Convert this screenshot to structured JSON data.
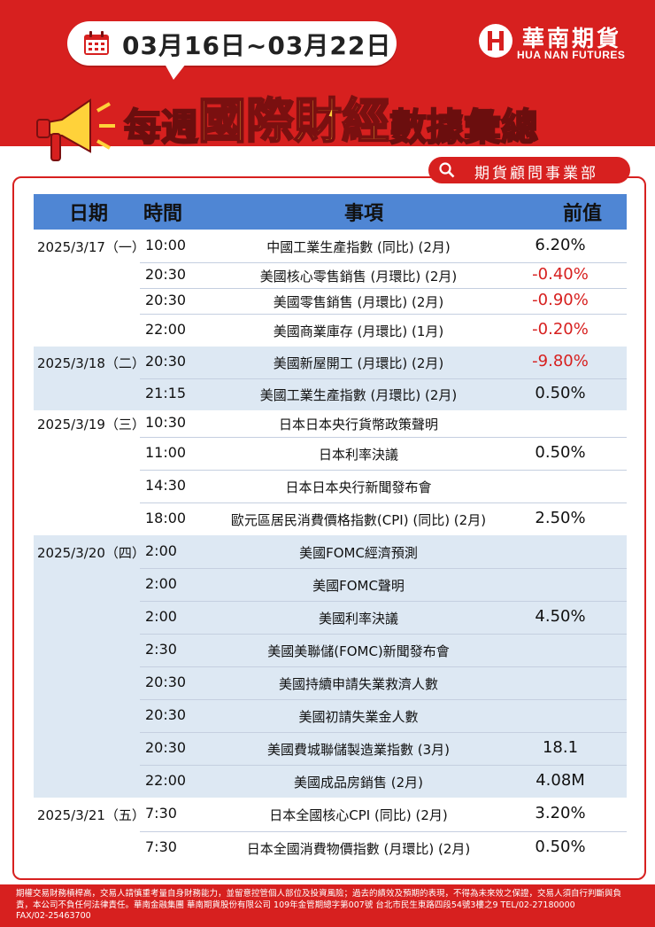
{
  "header": {
    "date_range": "03月16日~03月22日",
    "brand_cn": "華南期貨",
    "brand_en": "HUA NAN FUTURES",
    "title_part1": "每週",
    "title_part2": "國際財經",
    "title_part3": "數據彙總",
    "department": "期貨顧問事業部"
  },
  "table": {
    "columns": {
      "date": "日期",
      "time": "時間",
      "item": "事項",
      "previous": "前值"
    },
    "groups": [
      {
        "date": "2025/3/17（一）",
        "rows": [
          {
            "time": "10:00",
            "item": "中國工業生產指數 (同比) (2月)",
            "previous": "6.20%"
          },
          {
            "time": "20:30",
            "item": "美國核心零售銷售 (月環比) (2月)",
            "previous": "-0.40%"
          },
          {
            "time": "20:30",
            "item": "美國零售銷售 (月環比) (2月)",
            "previous": "-0.90%"
          },
          {
            "time": "22:00",
            "item": "美國商業庫存 (月環比) (1月)",
            "previous": "-0.20%"
          }
        ]
      },
      {
        "date": "2025/3/18（二）",
        "rows": [
          {
            "time": "20:30",
            "item": "美國新屋開工 (月環比) (2月)",
            "previous": "-9.80%"
          },
          {
            "time": "21:15",
            "item": "美國工業生產指數 (月環比) (2月)",
            "previous": "0.50%"
          }
        ]
      },
      {
        "date": "2025/3/19（三）",
        "rows": [
          {
            "time": "10:30",
            "item": "日本日本央行貨幣政策聲明",
            "previous": ""
          },
          {
            "time": "11:00",
            "item": "日本利率決議",
            "previous": "0.50%"
          },
          {
            "time": "14:30",
            "item": "日本日本央行新聞發布會",
            "previous": ""
          },
          {
            "time": "18:00",
            "item": "歐元區居民消費價格指數(CPI) (同比) (2月)",
            "previous": "2.50%"
          }
        ]
      },
      {
        "date": "2025/3/20（四）",
        "rows": [
          {
            "time": "2:00",
            "item": "美國FOMC經濟預測",
            "previous": ""
          },
          {
            "time": "2:00",
            "item": "美國FOMC聲明",
            "previous": ""
          },
          {
            "time": "2:00",
            "item": "美國利率決議",
            "previous": "4.50%"
          },
          {
            "time": "2:30",
            "item": "美國美聯儲(FOMC)新聞發布會",
            "previous": ""
          },
          {
            "time": "20:30",
            "item": "美國持續申請失業救濟人數",
            "previous": ""
          },
          {
            "time": "20:30",
            "item": "美國初請失業金人數",
            "previous": ""
          },
          {
            "time": "20:30",
            "item": "美國費城聯儲製造業指數 (3月)",
            "previous": "18.1"
          },
          {
            "time": "22:00",
            "item": "美國成品房銷售 (2月)",
            "previous": "4.08M"
          }
        ]
      },
      {
        "date": "2025/3/21（五）",
        "rows": [
          {
            "time": "7:30",
            "item": "日本全國核心CPI (同比) (2月)",
            "previous": "3.20%"
          },
          {
            "time": "7:30",
            "item": "日本全國消費物價指數 (月環比) (2月)",
            "previous": "0.50%"
          }
        ]
      }
    ]
  },
  "footer": {
    "line1": "期權交易財務槓桿高，交易人請慎重考量自身財務能力，並留意控管個人部位及投資風險；過去的績效及預期的表現，不得為未來效之保證，交易人須自行判斷與負",
    "line2": "責，本公司不負任何法律責任。華南金融集團 華南期貨股份有限公司 109年金管期總字第007號 台北市民生東路四段54號3樓之9 TEL/02-27180000",
    "line3": "FAX/02-25463700"
  },
  "colors": {
    "brand_red": "#d7201f",
    "header_blue": "#4f86d4",
    "row_shade": "#dde8f3",
    "title_gold": "#ffd23a"
  },
  "icons": [
    "calendar-icon",
    "hua-nan-logo-icon",
    "megaphone-icon",
    "search-icon"
  ]
}
